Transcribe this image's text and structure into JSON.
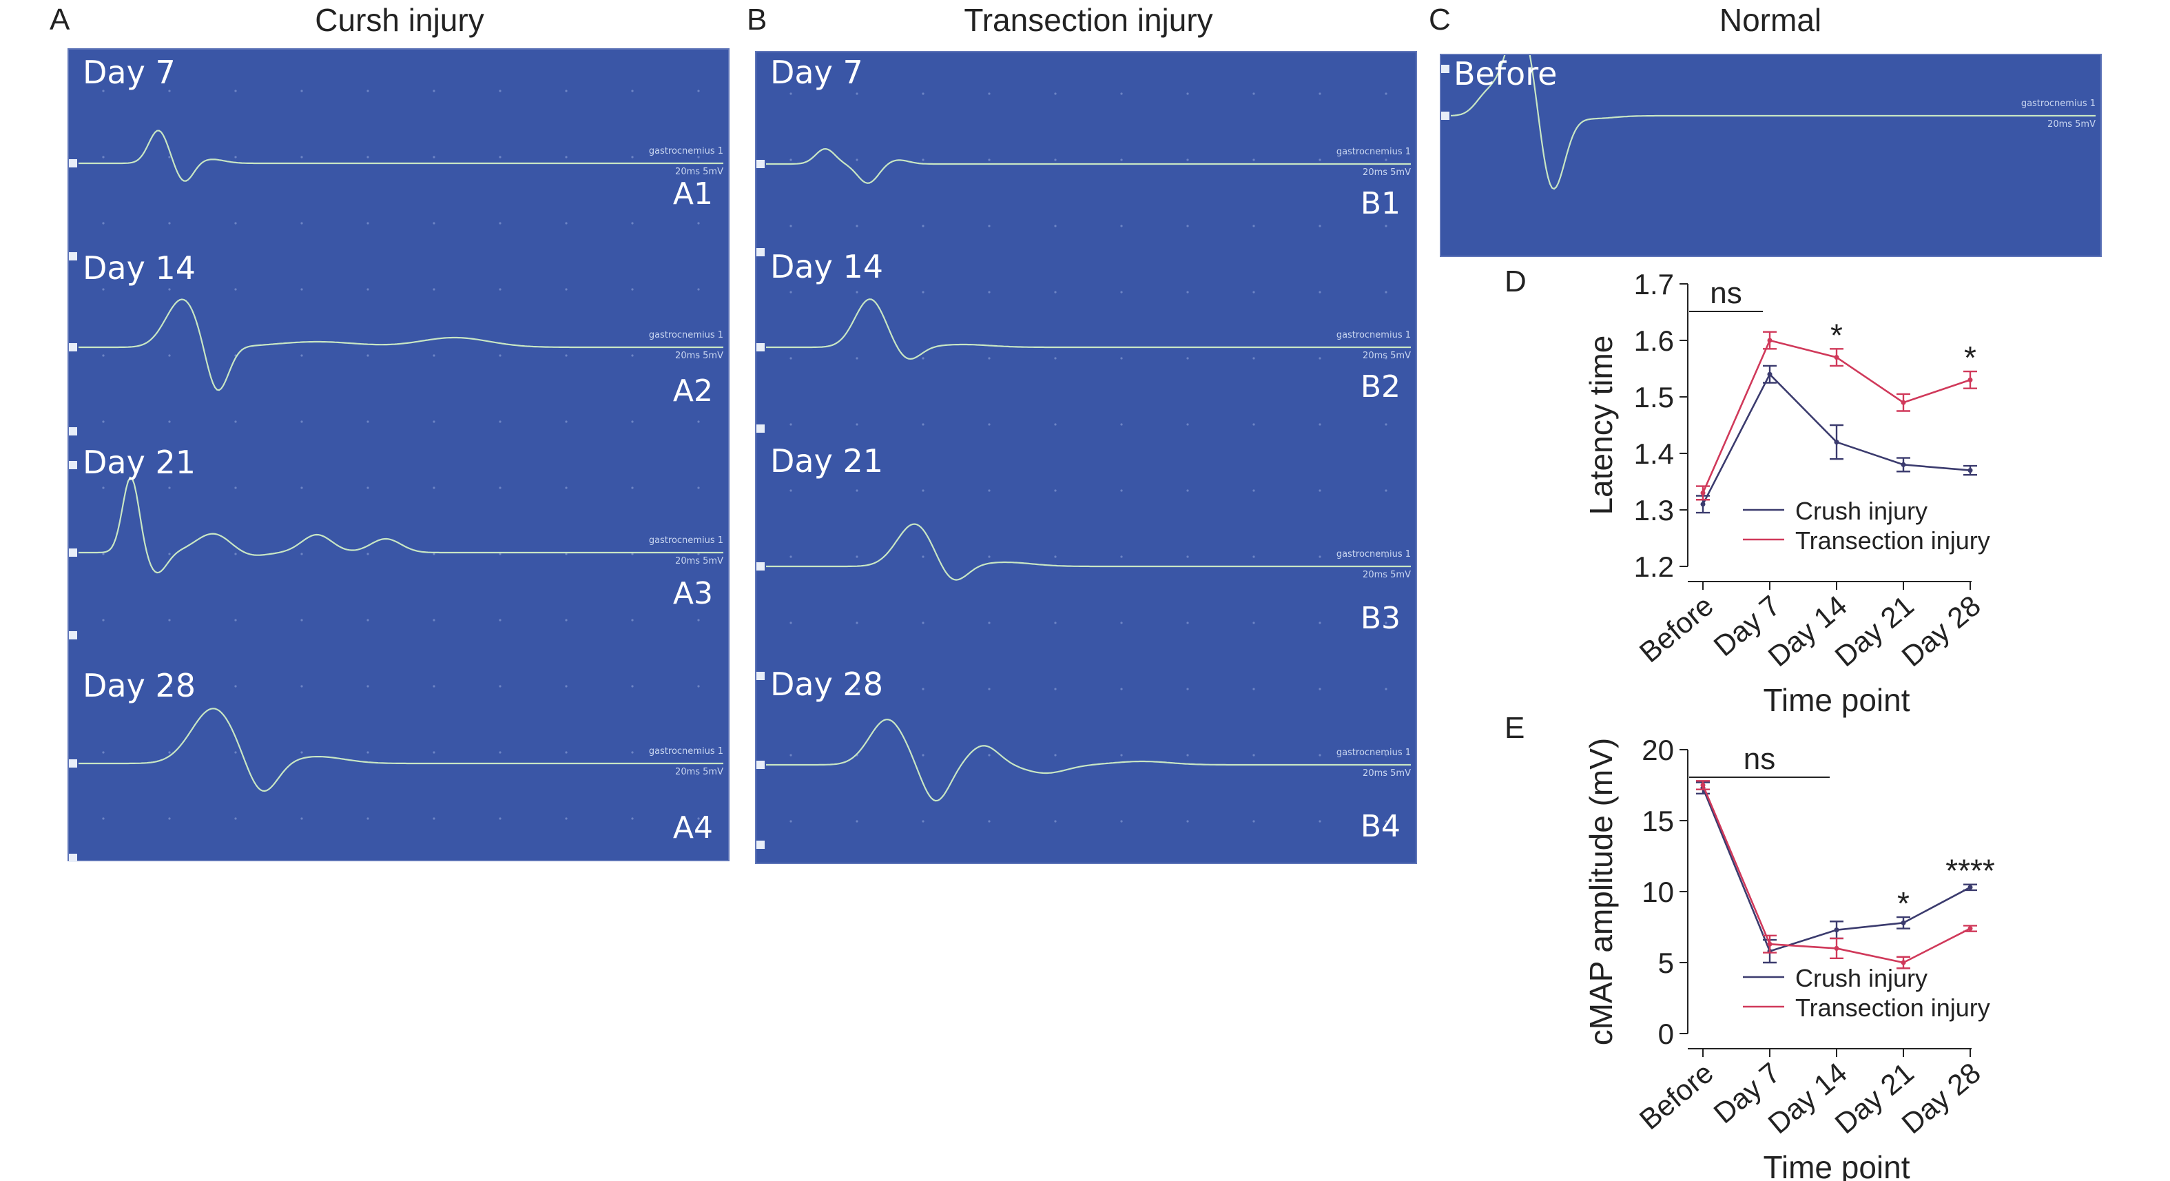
{
  "panels": {
    "A": {
      "letter": "A",
      "title": "Cursh injury",
      "days": [
        "Day 7",
        "Day 14",
        "Day 21",
        "Day 28"
      ],
      "traces": [
        "A1",
        "A2",
        "A3",
        "A4"
      ]
    },
    "B": {
      "letter": "B",
      "title": "Transection injury",
      "days": [
        "Day 7",
        "Day 14",
        "Day 21",
        "Day 28"
      ],
      "traces": [
        "B1",
        "B2",
        "B3",
        "B4"
      ]
    },
    "C": {
      "letter": "C",
      "title": "Normal",
      "day": "Before"
    },
    "trace_caption": {
      "muscle": "gastrocnemius 1",
      "scale": "20ms 5mV"
    }
  },
  "colors": {
    "panel_bg": "#3a56a6",
    "trace": "#c8e6c4",
    "crush": "#3b3b6e",
    "transection": "#d0395a"
  },
  "chart_data": [
    {
      "panel": "D",
      "type": "line",
      "xlabel": "Time point",
      "ylabel": "Latency time",
      "categories": [
        "Before",
        "Day 7",
        "Day 14",
        "Day 21",
        "Day 28"
      ],
      "ylim": [
        1.2,
        1.7
      ],
      "yticks": [
        "1.2",
        "1.3",
        "1.4",
        "1.5",
        "1.6",
        "1.7"
      ],
      "series": [
        {
          "name": "Crush injury",
          "values": [
            1.31,
            1.54,
            1.42,
            1.38,
            1.37
          ],
          "errors": [
            0.015,
            0.015,
            0.03,
            0.012,
            0.008
          ]
        },
        {
          "name": "Transection injury",
          "values": [
            1.33,
            1.6,
            1.57,
            1.49,
            1.53
          ],
          "errors": [
            0.012,
            0.015,
            0.015,
            0.015,
            0.015
          ]
        }
      ],
      "annotations": [
        {
          "text": "ns",
          "from": 0,
          "to": 1
        },
        {
          "text": "*",
          "at": 2
        },
        {
          "text": "*",
          "at": 4
        }
      ],
      "legend": "bottom-right"
    },
    {
      "panel": "E",
      "type": "line",
      "xlabel": "Time point",
      "ylabel": "cMAP amplitude (mV)",
      "categories": [
        "Before",
        "Day 7",
        "Day 14",
        "Day 21",
        "Day 28"
      ],
      "ylim": [
        0,
        20
      ],
      "yticks": [
        "0",
        "5",
        "10",
        "15",
        "20"
      ],
      "series": [
        {
          "name": "Crush injury",
          "values": [
            17.3,
            5.8,
            7.3,
            7.8,
            10.3
          ],
          "errors": [
            0.4,
            0.8,
            0.6,
            0.4,
            0.2
          ]
        },
        {
          "name": "Transection injury",
          "values": [
            17.5,
            6.3,
            6.0,
            5.0,
            7.4
          ],
          "errors": [
            0.3,
            0.6,
            0.7,
            0.4,
            0.2
          ]
        }
      ],
      "annotations": [
        {
          "text": "ns",
          "from": 0,
          "to": 2
        },
        {
          "text": "*",
          "at": 3
        },
        {
          "text": "****",
          "at": 4
        }
      ],
      "legend": "bottom-right"
    }
  ]
}
